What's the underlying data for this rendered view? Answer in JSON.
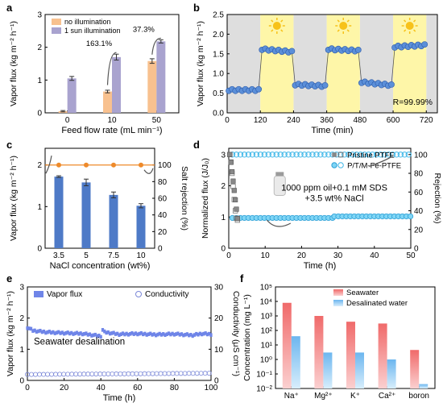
{
  "panels": [
    "a",
    "b",
    "c",
    "d",
    "e",
    "f"
  ],
  "chart_data": [
    {
      "panel": "a",
      "type": "bar",
      "xlabel": "Feed flow rate (mL min⁻¹)",
      "ylabel": "Vapor flux (kg m⁻² h⁻¹)",
      "categories": [
        "0",
        "10",
        "50"
      ],
      "ylim": [
        0,
        3
      ],
      "yticks": [
        0,
        1,
        2,
        3
      ],
      "series": [
        {
          "name": "no illumination",
          "values": [
            0.05,
            0.65,
            1.58
          ],
          "errors": [
            0.02,
            0.04,
            0.07
          ],
          "color": "#f8c18f"
        },
        {
          "name": "1 sun illumination",
          "values": [
            1.05,
            1.7,
            2.18
          ],
          "errors": [
            0.06,
            0.09,
            0.05
          ],
          "color": "#a9a3cf"
        }
      ],
      "annotations": [
        {
          "text": "163.1%",
          "category": "10"
        },
        {
          "text": "37.3%",
          "category": "50"
        }
      ],
      "legend": "top-left",
      "grid": false
    },
    {
      "panel": "b",
      "type": "scatter",
      "xlabel": "Time (min)",
      "ylabel": "Vapor flux (kg m⁻² h⁻¹)",
      "xlim": [
        0,
        760
      ],
      "ylim": [
        0,
        2.5
      ],
      "xticks": [
        0,
        120,
        240,
        360,
        480,
        600,
        720
      ],
      "yticks": [
        0.0,
        0.5,
        1.0,
        1.5,
        2.0,
        2.5
      ],
      "illuminated_intervals": [
        [
          120,
          240
        ],
        [
          360,
          480
        ],
        [
          600,
          720
        ]
      ],
      "dark_intervals": [
        [
          0,
          120
        ],
        [
          240,
          360
        ],
        [
          480,
          600
        ],
        [
          720,
          760
        ]
      ],
      "illuminated_color": "#fef6a8",
      "dark_color": "#dedede",
      "marker_color": "#5b8fd9",
      "cycles": [
        {
          "start": 0,
          "end": 120,
          "from": 0.58,
          "to": 0.58
        },
        {
          "start": 120,
          "end": 240,
          "from": 1.62,
          "to": 1.55
        },
        {
          "start": 240,
          "end": 360,
          "from": 0.72,
          "to": 0.68
        },
        {
          "start": 360,
          "end": 480,
          "from": 1.62,
          "to": 1.58
        },
        {
          "start": 480,
          "end": 600,
          "from": 0.78,
          "to": 0.7
        },
        {
          "start": 600,
          "end": 720,
          "from": 1.68,
          "to": 1.72
        }
      ],
      "annotation": "R=99.99%",
      "grid": false
    },
    {
      "panel": "c",
      "type": "bar",
      "xlabel": "NaCl concentration (wt%)",
      "ylabel": "Vapor flux (kg m⁻² h⁻¹)",
      "ylabel_right": "Salt rejection (%)",
      "categories": [
        "3.5",
        "5",
        "7.5",
        "10"
      ],
      "ylim": [
        0,
        2.4
      ],
      "yticks": [
        0,
        1,
        2
      ],
      "ylim_right": [
        0,
        120
      ],
      "yticks_right": [
        0,
        20,
        40,
        60,
        80,
        100
      ],
      "series": [
        {
          "name": "Vapor flux",
          "values": [
            1.72,
            1.58,
            1.28,
            1.02
          ],
          "errors": [
            0.02,
            0.08,
            0.07,
            0.05
          ],
          "color": "#4e7ac7"
        },
        {
          "name": "Salt rejection",
          "values": [
            99.9,
            99.9,
            99.9,
            99.9
          ],
          "color": "#ee8a2a"
        }
      ],
      "grid": false
    },
    {
      "panel": "d",
      "type": "scatter",
      "xlabel": "Time (h)",
      "ylabel": "Normalized flux (J/J₀)",
      "ylabel_right": "Rejection (%)",
      "xlim": [
        0,
        50
      ],
      "ylim": [
        0,
        3.2
      ],
      "xticks": [
        0,
        10,
        20,
        30,
        40,
        50
      ],
      "yticks": [
        0,
        1,
        2,
        3
      ],
      "ylim_right": [
        0,
        106.7
      ],
      "yticks_right": [
        0,
        20,
        40,
        60,
        80,
        100
      ],
      "series": [
        {
          "name": "Pristine PTFE",
          "flux_x": [
            0.3,
            0.6,
            0.9,
            1.2,
            1.5,
            1.8,
            2.1,
            2.4
          ],
          "flux_y": [
            3.0,
            2.75,
            2.45,
            2.15,
            1.85,
            1.55,
            1.25,
            0.95
          ],
          "rejection_x": [
            0.3,
            0.6,
            0.9,
            1.2,
            1.5,
            1.8,
            2.1,
            2.4
          ],
          "rejection_y": [
            100,
            92,
            80,
            66,
            52,
            40,
            32,
            30
          ]
        },
        {
          "name": "P/T/M-Fe-PTFE",
          "flux_segments": [
            {
              "x0": 1,
              "x1": 29,
              "y": 0.97
            },
            {
              "x0": 29,
              "x1": 50,
              "y": 1.02
            }
          ],
          "rejection": 100
        }
      ],
      "annotation": [
        "1000 ppm oil+0.1 mM SDS",
        "+3.5 wt% NaCl"
      ],
      "legend": "top-right",
      "grid": false
    },
    {
      "panel": "e",
      "type": "line",
      "xlabel": "Time (h)",
      "ylabel": "Vapor flux (kg m⁻² h⁻¹)",
      "ylabel_right": "Conductivity (μS cm⁻¹)",
      "xlim": [
        0,
        100
      ],
      "ylim": [
        0,
        3
      ],
      "xticks": [
        0,
        20,
        40,
        60,
        80,
        100
      ],
      "yticks": [
        0,
        1,
        2,
        3
      ],
      "ylim_right": [
        0,
        30
      ],
      "yticks_right": [
        0,
        10,
        20,
        30
      ],
      "series": [
        {
          "name": "Vapor flux",
          "x": [
            0,
            3,
            10,
            20,
            30,
            40,
            41,
            42,
            50,
            60,
            70,
            80,
            90,
            95,
            100
          ],
          "y": [
            1.7,
            1.6,
            1.55,
            1.52,
            1.5,
            1.42,
            1.62,
            1.55,
            1.48,
            1.5,
            1.47,
            1.49,
            1.45,
            1.5,
            1.48
          ],
          "color": "#6f85e8"
        },
        {
          "name": "Conductivity",
          "x0": 0,
          "x1": 100,
          "y0": 1.9,
          "y1": 2.3,
          "color": "#7b88d8"
        }
      ],
      "annotation": "Seawater desalination",
      "legend": "top",
      "grid": false
    },
    {
      "panel": "f",
      "type": "bar",
      "ylabel": "Concentration (mg L⁻¹)",
      "categories": [
        "Na⁺",
        "Mg²⁺",
        "K⁺",
        "Ca²⁺",
        "boron"
      ],
      "yscale": "log",
      "ylim": [
        0.01,
        100000
      ],
      "yticks": [
        "10⁻²",
        "10⁻¹",
        "10⁰",
        "10¹",
        "10²",
        "10³",
        "10⁴",
        "10⁵"
      ],
      "series": [
        {
          "name": "Seawater",
          "values": [
            8000,
            1000,
            400,
            300,
            4.5
          ],
          "color": "#f06a6a"
        },
        {
          "name": "Desalinated water",
          "values": [
            40,
            3,
            3,
            1,
            0.02
          ],
          "color": "#6cb6ef"
        }
      ],
      "legend": "top-right",
      "grid": false
    }
  ]
}
